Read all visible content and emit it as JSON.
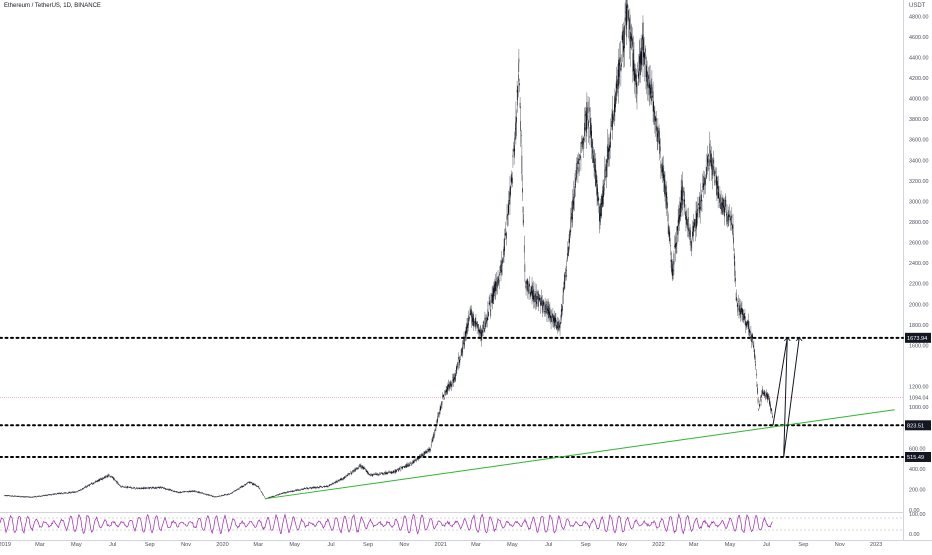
{
  "chart_data": {
    "type": "candlestick",
    "title": "Ethereum / TetherUS, 1D, BINANCE",
    "price_unit": "USDT",
    "ylim": [
      0,
      4900
    ],
    "y_ticks": [
      {
        "label": "4800.00",
        "value": 4800
      },
      {
        "label": "4600.00",
        "value": 4600
      },
      {
        "label": "4400.00",
        "value": 4400
      },
      {
        "label": "4200.00",
        "value": 4200
      },
      {
        "label": "4000.00",
        "value": 4000
      },
      {
        "label": "3800.00",
        "value": 3800
      },
      {
        "label": "3600.00",
        "value": 3600
      },
      {
        "label": "3400.00",
        "value": 3400
      },
      {
        "label": "3200.00",
        "value": 3200
      },
      {
        "label": "3000.00",
        "value": 3000
      },
      {
        "label": "2800.00",
        "value": 2800
      },
      {
        "label": "2600.00",
        "value": 2600
      },
      {
        "label": "2400.00",
        "value": 2400
      },
      {
        "label": "2200.00",
        "value": 2200
      },
      {
        "label": "2000.00",
        "value": 2000
      },
      {
        "label": "1800.00",
        "value": 1800
      },
      {
        "label": "1600.00",
        "value": 1600
      },
      {
        "label": "1200.00",
        "value": 1200
      },
      {
        "label": "1000.00",
        "value": 1000
      },
      {
        "label": "600.00",
        "value": 600
      },
      {
        "label": "400.00",
        "value": 400
      },
      {
        "label": "200.00",
        "value": 200
      },
      {
        "label": "0.00",
        "value": 0
      }
    ],
    "x_ticks": [
      {
        "label": "2019",
        "date": "2019-01-01"
      },
      {
        "label": "Mar",
        "date": "2019-03-01"
      },
      {
        "label": "May",
        "date": "2019-05-01"
      },
      {
        "label": "Jul",
        "date": "2019-07-01"
      },
      {
        "label": "Sep",
        "date": "2019-09-01"
      },
      {
        "label": "Nov",
        "date": "2019-11-01"
      },
      {
        "label": "2020",
        "date": "2020-01-01"
      },
      {
        "label": "Mar",
        "date": "2020-03-01"
      },
      {
        "label": "May",
        "date": "2020-05-01"
      },
      {
        "label": "Jul",
        "date": "2020-07-01"
      },
      {
        "label": "Sep",
        "date": "2020-09-01"
      },
      {
        "label": "Nov",
        "date": "2020-11-01"
      },
      {
        "label": "2021",
        "date": "2021-01-01"
      },
      {
        "label": "Mar",
        "date": "2021-03-01"
      },
      {
        "label": "May",
        "date": "2021-05-01"
      },
      {
        "label": "Jul",
        "date": "2021-07-01"
      },
      {
        "label": "Sep",
        "date": "2021-09-01"
      },
      {
        "label": "Nov",
        "date": "2021-11-01"
      },
      {
        "label": "2022",
        "date": "2022-01-01"
      },
      {
        "label": "Mar",
        "date": "2022-03-01"
      },
      {
        "label": "May",
        "date": "2022-05-01"
      },
      {
        "label": "Jul",
        "date": "2022-07-01"
      },
      {
        "label": "Sep",
        "date": "2022-09-01"
      },
      {
        "label": "Nov",
        "date": "2022-11-01"
      },
      {
        "label": "2023",
        "date": "2023-01-01"
      }
    ],
    "price_series": [
      {
        "date": "2019-01-01",
        "value": 140
      },
      {
        "date": "2019-02-15",
        "value": 125
      },
      {
        "date": "2019-04-01",
        "value": 160
      },
      {
        "date": "2019-05-01",
        "value": 175
      },
      {
        "date": "2019-06-01",
        "value": 270
      },
      {
        "date": "2019-06-26",
        "value": 340
      },
      {
        "date": "2019-07-15",
        "value": 230
      },
      {
        "date": "2019-08-10",
        "value": 210
      },
      {
        "date": "2019-09-20",
        "value": 220
      },
      {
        "date": "2019-10-20",
        "value": 170
      },
      {
        "date": "2019-11-15",
        "value": 185
      },
      {
        "date": "2019-12-20",
        "value": 128
      },
      {
        "date": "2020-01-15",
        "value": 160
      },
      {
        "date": "2020-02-15",
        "value": 270
      },
      {
        "date": "2020-03-01",
        "value": 230
      },
      {
        "date": "2020-03-13",
        "value": 110
      },
      {
        "date": "2020-04-15",
        "value": 170
      },
      {
        "date": "2020-05-20",
        "value": 210
      },
      {
        "date": "2020-06-25",
        "value": 230
      },
      {
        "date": "2020-07-25",
        "value": 320
      },
      {
        "date": "2020-08-20",
        "value": 430
      },
      {
        "date": "2020-09-05",
        "value": 340
      },
      {
        "date": "2020-10-15",
        "value": 370
      },
      {
        "date": "2020-11-15",
        "value": 460
      },
      {
        "date": "2020-12-15",
        "value": 600
      },
      {
        "date": "2021-01-05",
        "value": 1100
      },
      {
        "date": "2021-01-25",
        "value": 1300
      },
      {
        "date": "2021-02-20",
        "value": 1900
      },
      {
        "date": "2021-03-10",
        "value": 1700
      },
      {
        "date": "2021-04-15",
        "value": 2400
      },
      {
        "date": "2021-05-05",
        "value": 3500
      },
      {
        "date": "2021-05-12",
        "value": 4300
      },
      {
        "date": "2021-05-23",
        "value": 2200
      },
      {
        "date": "2021-06-20",
        "value": 2000
      },
      {
        "date": "2021-07-20",
        "value": 1780
      },
      {
        "date": "2021-08-15",
        "value": 3200
      },
      {
        "date": "2021-09-05",
        "value": 3900
      },
      {
        "date": "2021-09-25",
        "value": 2850
      },
      {
        "date": "2021-10-20",
        "value": 4000
      },
      {
        "date": "2021-11-10",
        "value": 4850
      },
      {
        "date": "2021-11-25",
        "value": 4100
      },
      {
        "date": "2021-12-05",
        "value": 4500
      },
      {
        "date": "2021-12-25",
        "value": 3900
      },
      {
        "date": "2022-01-15",
        "value": 3000
      },
      {
        "date": "2022-01-24",
        "value": 2300
      },
      {
        "date": "2022-02-10",
        "value": 3100
      },
      {
        "date": "2022-02-25",
        "value": 2600
      },
      {
        "date": "2022-03-28",
        "value": 3450
      },
      {
        "date": "2022-04-15",
        "value": 3000
      },
      {
        "date": "2022-05-05",
        "value": 2800
      },
      {
        "date": "2022-05-12",
        "value": 2000
      },
      {
        "date": "2022-06-01",
        "value": 1800
      },
      {
        "date": "2022-06-10",
        "value": 1600
      },
      {
        "date": "2022-06-18",
        "value": 1000
      },
      {
        "date": "2022-06-25",
        "value": 1150
      },
      {
        "date": "2022-07-05",
        "value": 1080
      },
      {
        "date": "2022-07-12",
        "value": 900
      }
    ],
    "horizontal_levels": [
      {
        "value": 1673.94,
        "label": "1673.94",
        "style": "dotted"
      },
      {
        "value": 823.51,
        "label": "823.51",
        "style": "dotted"
      },
      {
        "value": 515.49,
        "label": "515.49",
        "style": "dotted"
      }
    ],
    "last_price": {
      "value": 1094.04,
      "label": "1094.04",
      "line_color": "#f23645"
    },
    "trendline": {
      "points": [
        {
          "date": "2020-03-13",
          "value": 110
        },
        {
          "date": "2023-02-01",
          "value": 975
        }
      ],
      "color": "#2db52d"
    },
    "projection_path": [
      {
        "date": "2022-07-12",
        "value": 823.51
      },
      {
        "date": "2022-08-05",
        "value": 1673.94
      },
      {
        "date": "2022-07-30",
        "value": 515.49
      },
      {
        "date": "2022-08-25",
        "value": 1673.94
      }
    ],
    "oscillator": {
      "ylim": [
        0,
        100
      ],
      "y_ticks": [
        {
          "label": "100.00",
          "value": 100
        },
        {
          "label": "0.00",
          "value": 0
        }
      ],
      "line_color": "#9c27b0",
      "band_lines": [
        80,
        20
      ]
    },
    "colors": {
      "candles": "#131722",
      "level_lines": "#000000",
      "trendline": "#2db52d",
      "oscillator": "#9c27b0"
    }
  }
}
